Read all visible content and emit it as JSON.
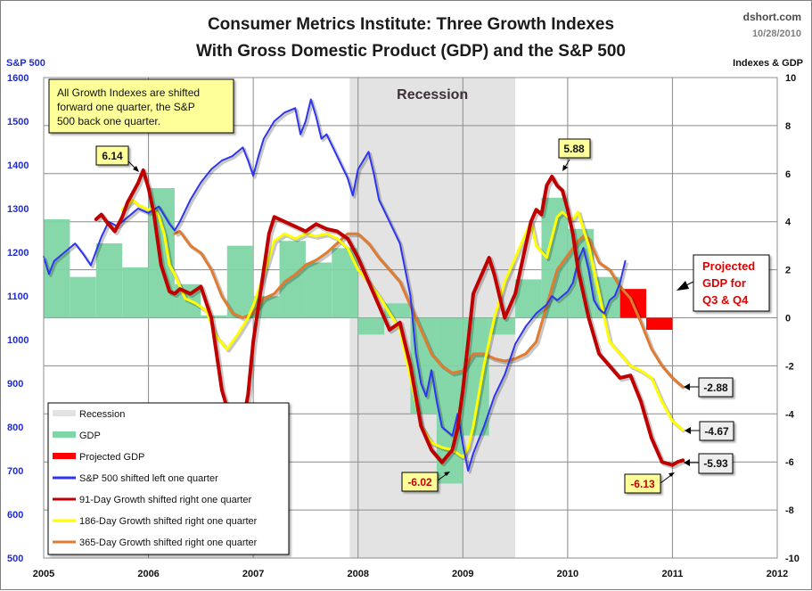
{
  "chart_data": {
    "type": "line",
    "title": "Consumer Metrics Institute: Three Growth Indexes",
    "subtitle": "With Gross Domestic Product (GDP) and the S&P 500",
    "source": "dshort.com",
    "date": "10/28/2010",
    "left_axis": {
      "label": "S&P 500",
      "ylim": [
        500,
        1600
      ],
      "ticks": [
        500,
        600,
        700,
        800,
        900,
        1000,
        1100,
        1200,
        1300,
        1400,
        1500,
        1600
      ]
    },
    "right_axis": {
      "label": "Indexes & GDP",
      "ylim": [
        -10,
        10
      ],
      "ticks": [
        -10,
        -8,
        -6,
        -4,
        -2,
        0,
        2,
        4,
        6,
        8,
        10
      ]
    },
    "x_axis": {
      "xlim": [
        2005,
        2012
      ],
      "ticks": [
        "2005",
        "2006",
        "2007",
        "2008",
        "2009",
        "2010",
        "2011",
        "2012"
      ]
    },
    "grid": true,
    "recession": {
      "label": "Recession",
      "start": 2007.92,
      "end": 2009.5
    },
    "gdp": {
      "name": "GDP",
      "color": "#7fd6a6",
      "quarters": [
        2005.0,
        2005.25,
        2005.5,
        2005.75,
        2006.0,
        2006.25,
        2006.5,
        2006.75,
        2007.0,
        2007.25,
        2007.5,
        2007.75,
        2008.0,
        2008.25,
        2008.5,
        2008.75,
        2009.0,
        2009.25,
        2009.5,
        2009.75,
        2010.0,
        2010.25
      ],
      "values": [
        4.1,
        1.7,
        3.1,
        2.1,
        5.4,
        1.4,
        0.1,
        3.0,
        0.9,
        3.2,
        2.3,
        2.9,
        -0.7,
        0.6,
        -4.0,
        -6.9,
        -4.9,
        -0.7,
        1.6,
        5.0,
        3.7,
        1.7
      ]
    },
    "projected_gdp": {
      "name": "Projected GDP",
      "color": "#ff0000",
      "quarters": [
        2010.5,
        2010.75
      ],
      "values": [
        1.2,
        -0.5
      ]
    },
    "series": [
      {
        "name": "S&P 500 shifted left one quarter",
        "axis": "left",
        "color": "#2e35f0",
        "x": [
          2005.0,
          2005.05,
          2005.1,
          2005.2,
          2005.3,
          2005.38,
          2005.45,
          2005.55,
          2005.62,
          2005.7,
          2005.8,
          2005.9,
          2006.0,
          2006.1,
          2006.2,
          2006.25,
          2006.3,
          2006.4,
          2006.5,
          2006.6,
          2006.7,
          2006.8,
          2006.9,
          2006.95,
          2007.0,
          2007.05,
          2007.1,
          2007.2,
          2007.3,
          2007.4,
          2007.45,
          2007.5,
          2007.55,
          2007.6,
          2007.65,
          2007.7,
          2007.8,
          2007.9,
          2007.95,
          2008.0,
          2008.05,
          2008.1,
          2008.15,
          2008.2,
          2008.3,
          2008.4,
          2008.45,
          2008.5,
          2008.55,
          2008.6,
          2008.65,
          2008.7,
          2008.75,
          2008.8,
          2008.9,
          2008.95,
          2009.0,
          2009.05,
          2009.1,
          2009.2,
          2009.3,
          2009.4,
          2009.5,
          2009.6,
          2009.7,
          2009.8,
          2009.85,
          2009.9,
          2010.0,
          2010.05,
          2010.1,
          2010.15,
          2010.2,
          2010.25,
          2010.3,
          2010.35,
          2010.4,
          2010.45,
          2010.5,
          2010.55
        ],
        "values": [
          1190,
          1150,
          1180,
          1200,
          1220,
          1195,
          1170,
          1235,
          1270,
          1260,
          1280,
          1300,
          1290,
          1305,
          1265,
          1250,
          1270,
          1320,
          1360,
          1390,
          1410,
          1420,
          1440,
          1410,
          1375,
          1420,
          1460,
          1500,
          1520,
          1530,
          1470,
          1500,
          1550,
          1510,
          1460,
          1470,
          1420,
          1370,
          1330,
          1390,
          1410,
          1430,
          1380,
          1320,
          1270,
          1220,
          1160,
          1100,
          970,
          900,
          870,
          930,
          860,
          800,
          780,
          830,
          760,
          700,
          740,
          800,
          870,
          920,
          990,
          1030,
          1060,
          1080,
          1100,
          1090,
          1110,
          1130,
          1180,
          1210,
          1160,
          1090,
          1070,
          1060,
          1090,
          1100,
          1130,
          1180
        ]
      },
      {
        "name": "91-Day Growth shifted right one quarter",
        "axis": "right",
        "color": "#c00000",
        "x": [
          2005.5,
          2005.55,
          2005.6,
          2005.68,
          2005.75,
          2005.8,
          2005.9,
          2005.95,
          2006.0,
          2006.05,
          2006.12,
          2006.2,
          2006.25,
          2006.3,
          2006.4,
          2006.5,
          2006.6,
          2006.7,
          2006.8,
          2006.9,
          2006.95,
          2007.0,
          2007.1,
          2007.15,
          2007.2,
          2007.3,
          2007.4,
          2007.5,
          2007.6,
          2007.7,
          2007.8,
          2007.9,
          2008.0,
          2008.1,
          2008.2,
          2008.3,
          2008.4,
          2008.5,
          2008.6,
          2008.7,
          2008.8,
          2008.9,
          2008.95,
          2009.0,
          2009.05,
          2009.1,
          2009.2,
          2009.25,
          2009.3,
          2009.4,
          2009.45,
          2009.5,
          2009.55,
          2009.6,
          2009.65,
          2009.7,
          2009.75,
          2009.8,
          2009.85,
          2009.9,
          2009.95,
          2010.0,
          2010.05,
          2010.1,
          2010.2,
          2010.3,
          2010.4,
          2010.5,
          2010.6,
          2010.7,
          2010.8,
          2010.9,
          2011.0,
          2011.05,
          2011.1
        ],
        "values": [
          4.1,
          4.3,
          4.0,
          3.6,
          4.2,
          4.8,
          5.6,
          6.14,
          5.4,
          4.4,
          2.2,
          1.1,
          1.0,
          1.2,
          1.0,
          1.3,
          0.0,
          -3.0,
          -4.5,
          -4.4,
          -3.2,
          -1.0,
          2.0,
          3.5,
          4.2,
          4.0,
          3.8,
          3.6,
          3.9,
          3.7,
          3.6,
          3.3,
          2.5,
          1.5,
          0.5,
          -0.5,
          -0.2,
          -2.0,
          -4.5,
          -5.5,
          -6.02,
          -5.5,
          -4.6,
          -3.0,
          -1.0,
          1.0,
          2.0,
          2.5,
          1.8,
          0.0,
          0.5,
          1.0,
          2.0,
          3.0,
          4.0,
          4.5,
          4.3,
          5.5,
          5.88,
          5.5,
          5.3,
          4.5,
          3.5,
          2.0,
          0.0,
          -1.5,
          -2.0,
          -2.5,
          -2.4,
          -3.5,
          -5.0,
          -6.0,
          -6.13,
          -6.0,
          -5.93
        ]
      },
      {
        "name": "186-Day Growth shifted right one quarter",
        "axis": "right",
        "color": "#ffff00",
        "x": [
          2005.75,
          2005.85,
          2005.9,
          2006.0,
          2006.05,
          2006.1,
          2006.15,
          2006.2,
          2006.25,
          2006.35,
          2006.45,
          2006.55,
          2006.65,
          2006.75,
          2006.85,
          2006.95,
          2007.0,
          2007.1,
          2007.2,
          2007.3,
          2007.4,
          2007.5,
          2007.6,
          2007.7,
          2007.8,
          2007.9,
          2008.0,
          2008.1,
          2008.2,
          2008.3,
          2008.4,
          2008.5,
          2008.6,
          2008.7,
          2008.8,
          2008.9,
          2009.0,
          2009.05,
          2009.1,
          2009.2,
          2009.3,
          2009.4,
          2009.5,
          2009.6,
          2009.65,
          2009.7,
          2009.8,
          2009.9,
          2009.95,
          2010.0,
          2010.05,
          2010.1,
          2010.2,
          2010.3,
          2010.4,
          2010.5,
          2010.6,
          2010.7,
          2010.8,
          2010.9,
          2011.0,
          2011.1
        ],
        "values": [
          4.5,
          4.9,
          4.7,
          4.5,
          4.6,
          4.2,
          3.5,
          2.2,
          1.8,
          0.8,
          0.6,
          0.3,
          -0.8,
          -1.3,
          -0.7,
          0.0,
          0.5,
          1.8,
          3.2,
          3.5,
          3.3,
          3.5,
          3.4,
          3.5,
          3.3,
          2.9,
          2.0,
          1.5,
          0.9,
          0.2,
          -0.5,
          -2.5,
          -4.5,
          -5.2,
          -5.4,
          -5.5,
          -5.8,
          -5.4,
          -4.5,
          -2.0,
          0.0,
          1.5,
          2.5,
          3.5,
          4.0,
          3.0,
          2.5,
          4.2,
          4.4,
          4.2,
          4.1,
          4.4,
          3.0,
          1.0,
          -1.0,
          -1.5,
          -2.0,
          -2.2,
          -2.5,
          -3.5,
          -4.3,
          -4.67
        ]
      },
      {
        "name": "365-Day Growth shifted right one quarter",
        "axis": "right",
        "color": "#e07b30",
        "x": [
          2006.25,
          2006.3,
          2006.4,
          2006.5,
          2006.6,
          2006.7,
          2006.8,
          2006.9,
          2007.0,
          2007.1,
          2007.2,
          2007.3,
          2007.4,
          2007.5,
          2007.6,
          2007.7,
          2007.8,
          2007.9,
          2008.0,
          2008.1,
          2008.2,
          2008.3,
          2008.4,
          2008.5,
          2008.6,
          2008.7,
          2008.8,
          2008.9,
          2009.0,
          2009.1,
          2009.2,
          2009.3,
          2009.4,
          2009.5,
          2009.6,
          2009.7,
          2009.8,
          2009.9,
          2010.0,
          2010.1,
          2010.15,
          2010.2,
          2010.3,
          2010.4,
          2010.5,
          2010.6,
          2010.7,
          2010.8,
          2010.9,
          2011.0,
          2011.1
        ],
        "values": [
          3.5,
          3.6,
          3.0,
          2.7,
          2.0,
          0.9,
          0.2,
          0.0,
          0.2,
          0.8,
          1.0,
          1.5,
          1.8,
          2.2,
          2.4,
          2.7,
          3.1,
          3.5,
          3.5,
          3.1,
          2.5,
          2.0,
          1.5,
          0.5,
          -0.5,
          -1.5,
          -2.0,
          -2.3,
          -2.2,
          -1.5,
          -1.5,
          -1.7,
          -1.8,
          -1.7,
          -1.5,
          -1.0,
          0.5,
          2.0,
          2.6,
          3.2,
          3.4,
          3.3,
          2.3,
          2.0,
          1.3,
          0.8,
          -0.2,
          -1.3,
          -2.0,
          -2.5,
          -2.88
        ]
      }
    ],
    "annotations": [
      {
        "id": "note",
        "text_lines": [
          "All Growth Indexes are shifted",
          "forward one quarter, the S&P",
          "500  back one quarter."
        ]
      },
      {
        "id": "peak-2006",
        "text": "6.14",
        "style": "yellow"
      },
      {
        "id": "peak-2010",
        "text": "5.88",
        "style": "yellow"
      },
      {
        "id": "trough-2009",
        "text": "-6.02",
        "style": "yellow-red"
      },
      {
        "id": "low-2011",
        "text": "-6.13",
        "style": "yellow-red"
      },
      {
        "id": "end-365",
        "text": "-2.88",
        "style": "gray"
      },
      {
        "id": "end-186",
        "text": "-4.67",
        "style": "gray"
      },
      {
        "id": "end-91",
        "text": "-5.93",
        "style": "gray"
      },
      {
        "id": "projected",
        "text_lines": [
          "Projected",
          "GDP for",
          "Q3 & Q4"
        ]
      }
    ],
    "legend": {
      "placement": "bottom-left",
      "items": [
        {
          "label": "Recession",
          "color": "#e3e3e3",
          "kind": "block"
        },
        {
          "label": "GDP",
          "color": "#7fd6a6",
          "kind": "block"
        },
        {
          "label": "Projected GDP",
          "color": "#ff0000",
          "kind": "block"
        },
        {
          "label": "S&P 500 shifted left one quarter",
          "color": "#2e35f0",
          "kind": "line"
        },
        {
          "label": "91-Day Growth shifted right one quarter",
          "color": "#c00000",
          "kind": "line"
        },
        {
          "label": "186-Day Growth shifted right one quarter",
          "color": "#ffff00",
          "kind": "line"
        },
        {
          "label": "365-Day Growth shifted right one quarter",
          "color": "#e07b30",
          "kind": "line"
        }
      ]
    }
  }
}
